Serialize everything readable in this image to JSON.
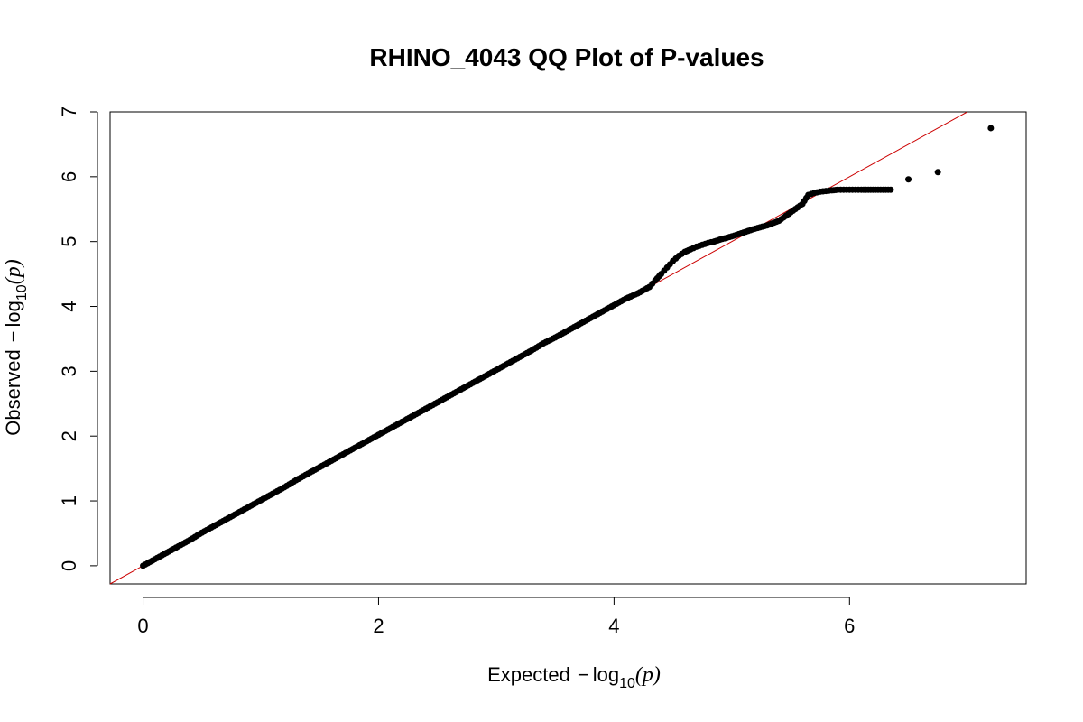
{
  "chart_data": {
    "type": "scatter",
    "title": "RHINO_4043 QQ Plot of P-values",
    "xlabel": {
      "prefix": "Expected",
      "minus": "−",
      "log": "log",
      "subscript": "10",
      "arg": "(p)"
    },
    "ylabel": {
      "prefix": "Observed",
      "minus": "−",
      "log": "log",
      "subscript": "10",
      "arg": "(p)"
    },
    "xlim": [
      -0.28,
      7.5
    ],
    "ylim": [
      -0.28,
      7.0
    ],
    "x_ticks": [
      0,
      2,
      4,
      6
    ],
    "x_tick_labels": [
      "0",
      "2",
      "4",
      "6"
    ],
    "y_ticks": [
      0,
      1,
      2,
      3,
      4,
      5,
      6,
      7
    ],
    "y_tick_labels": [
      "0",
      "1",
      "2",
      "3",
      "4",
      "5",
      "6",
      "7"
    ],
    "grid": false,
    "reference_line": {
      "intercept": 0,
      "slope": 1,
      "color": "#cc0000"
    },
    "point_color": "#000000",
    "series": [
      {
        "name": "observed",
        "x": [
          0.0,
          0.1,
          0.2,
          0.3,
          0.4,
          0.5,
          0.6,
          0.7,
          0.8,
          0.9,
          1.0,
          1.1,
          1.2,
          1.3,
          1.4,
          1.5,
          1.6,
          1.7,
          1.8,
          1.9,
          2.0,
          2.1,
          2.2,
          2.3,
          2.4,
          2.5,
          2.6,
          2.7,
          2.8,
          2.9,
          3.0,
          3.1,
          3.2,
          3.3,
          3.4,
          3.5,
          3.6,
          3.7,
          3.8,
          3.9,
          4.0,
          4.1,
          4.2,
          4.3,
          4.35,
          4.4,
          4.45,
          4.5,
          4.55,
          4.6,
          4.65,
          4.7,
          4.75,
          4.8,
          4.85,
          4.9,
          5.0,
          5.1,
          5.2,
          5.3,
          5.4,
          5.5,
          5.6,
          5.65,
          5.7,
          5.75,
          5.8,
          5.85,
          5.9,
          5.95,
          6.0,
          6.05,
          6.1,
          6.2,
          6.35,
          6.5,
          6.75,
          7.2
        ],
        "y": [
          0.0,
          0.1,
          0.2,
          0.3,
          0.4,
          0.51,
          0.61,
          0.71,
          0.81,
          0.91,
          1.01,
          1.11,
          1.21,
          1.32,
          1.42,
          1.52,
          1.62,
          1.72,
          1.82,
          1.92,
          2.02,
          2.12,
          2.22,
          2.32,
          2.42,
          2.52,
          2.62,
          2.72,
          2.82,
          2.92,
          3.02,
          3.12,
          3.22,
          3.32,
          3.43,
          3.52,
          3.62,
          3.72,
          3.82,
          3.92,
          4.02,
          4.12,
          4.2,
          4.3,
          4.4,
          4.5,
          4.6,
          4.7,
          4.78,
          4.84,
          4.88,
          4.92,
          4.95,
          4.98,
          5.0,
          5.03,
          5.08,
          5.14,
          5.2,
          5.25,
          5.32,
          5.45,
          5.58,
          5.72,
          5.75,
          5.77,
          5.78,
          5.79,
          5.8,
          5.8,
          5.8,
          5.8,
          5.8,
          5.8,
          5.8,
          5.96,
          6.07,
          6.75
        ]
      }
    ]
  }
}
